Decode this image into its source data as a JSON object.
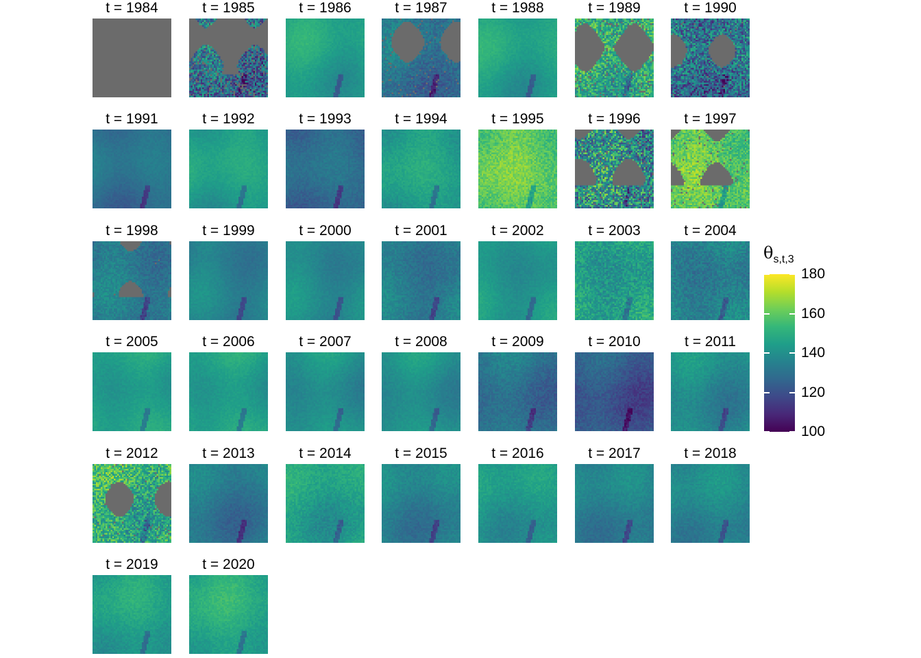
{
  "chart_data": {
    "type": "heatmap",
    "facet_prefix": "t = ",
    "facets": [
      1984,
      1985,
      1986,
      1987,
      1988,
      1989,
      1990,
      1991,
      1992,
      1993,
      1994,
      1995,
      1996,
      1997,
      1998,
      1999,
      2000,
      2001,
      2002,
      2003,
      2004,
      2005,
      2006,
      2007,
      2008,
      2009,
      2010,
      2011,
      2012,
      2013,
      2014,
      2015,
      2016,
      2017,
      2018,
      2019,
      2020
    ],
    "facet_titles": [
      "t = 1984",
      "t = 1985",
      "t = 1986",
      "t = 1987",
      "t = 1988",
      "t = 1989",
      "t = 1990",
      "t = 1991",
      "t = 1992",
      "t = 1993",
      "t = 1994",
      "t = 1995",
      "t = 1996",
      "t = 1997",
      "t = 1998",
      "t = 1999",
      "t = 2000",
      "t = 2001",
      "t = 2002",
      "t = 2003",
      "t = 2004",
      "t = 2005",
      "t = 2006",
      "t = 2007",
      "t = 2008",
      "t = 2009",
      "t = 2010",
      "t = 2011",
      "t = 2012",
      "t = 2013",
      "t = 2014",
      "t = 2015",
      "t = 2016",
      "t = 2017",
      "t = 2018",
      "t = 2019",
      "t = 2020"
    ],
    "approx_mean_value": [
      null,
      130,
      145,
      130,
      145,
      150,
      130,
      130,
      145,
      128,
      145,
      160,
      140,
      160,
      133,
      135,
      138,
      133,
      142,
      145,
      135,
      145,
      145,
      140,
      140,
      130,
      122,
      138,
      150,
      132,
      145,
      135,
      142,
      135,
      137,
      145,
      148
    ],
    "missing_fraction": [
      1.0,
      0.75,
      0,
      0.3,
      0,
      0.45,
      0.08,
      0,
      0,
      0,
      0,
      0,
      0.3,
      0.25,
      0.01,
      0,
      0,
      0,
      0,
      0,
      0,
      0,
      0,
      0,
      0,
      0,
      0,
      0,
      0.15,
      0,
      0,
      0,
      0,
      0,
      0,
      0,
      0
    ],
    "noise_level": [
      0,
      20,
      2,
      6,
      2,
      15,
      20,
      2,
      2,
      3,
      3,
      6,
      25,
      8,
      5,
      2,
      2,
      4,
      2,
      8,
      6,
      2,
      2,
      2,
      2,
      4,
      4,
      3,
      15,
      3,
      4,
      3,
      3,
      3,
      3,
      3,
      3
    ],
    "colorscale": "viridis",
    "missing_color": "#6b6b6b",
    "legend": {
      "title": "θ",
      "title_subscript": "s,t,3",
      "range": [
        100,
        180
      ],
      "ticks": [
        "180",
        "160",
        "140",
        "120",
        "100"
      ],
      "tick_values": [
        180,
        160,
        140,
        120,
        100
      ],
      "placement": "right"
    }
  }
}
